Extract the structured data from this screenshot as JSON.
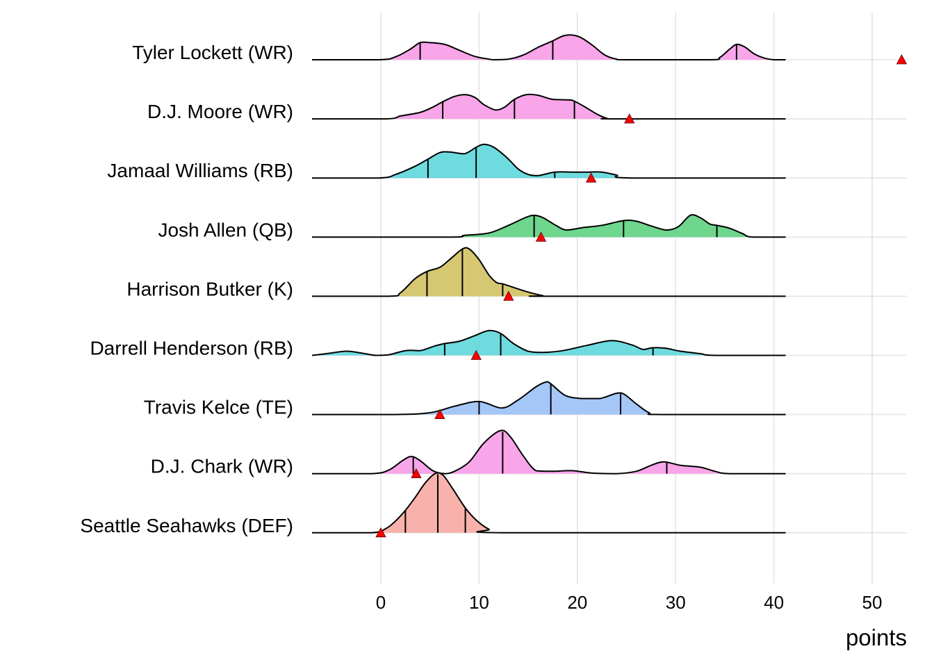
{
  "chart_data": {
    "type": "ridgeline",
    "title": "",
    "xlabel": "points",
    "ylabel": "",
    "xlim": [
      -7,
      53.5
    ],
    "x_ticks": [
      0,
      10,
      20,
      30,
      40,
      50
    ],
    "x_tick_labels": [
      "0",
      "10",
      "20",
      "30",
      "40",
      "50"
    ],
    "grid": true,
    "legend": "none",
    "marker_color": "#ff0000",
    "series": [
      {
        "name": "Tyler Lockett (WR)",
        "color": "#f8a0e8",
        "quantiles": [
          4.0,
          17.5,
          36.2
        ],
        "actual": 53.0,
        "density": [
          [
            -7,
            0
          ],
          [
            -0.2,
            0
          ],
          [
            1.5,
            0.05
          ],
          [
            3,
            0.18
          ],
          [
            4,
            0.29
          ],
          [
            5,
            0.29
          ],
          [
            6.5,
            0.26
          ],
          [
            8,
            0.16
          ],
          [
            9.5,
            0.06
          ],
          [
            11,
            0.01
          ],
          [
            11.6,
            0
          ],
          [
            13,
            0.01
          ],
          [
            14.5,
            0.08
          ],
          [
            16,
            0.21
          ],
          [
            17.5,
            0.32
          ],
          [
            18.5,
            0.4
          ],
          [
            19.3,
            0.42
          ],
          [
            20.3,
            0.38
          ],
          [
            21.5,
            0.25
          ],
          [
            22.8,
            0.08
          ],
          [
            24,
            0.01
          ],
          [
            25,
            0
          ],
          [
            33.5,
            0
          ],
          [
            34.5,
            0.04
          ],
          [
            35.5,
            0.18
          ],
          [
            36.2,
            0.26
          ],
          [
            37,
            0.22
          ],
          [
            38,
            0.1
          ],
          [
            39,
            0.03
          ],
          [
            40,
            0
          ],
          [
            41.2,
            0
          ]
        ]
      },
      {
        "name": "D.J. Moore (WR)",
        "color": "#f8a0e8",
        "quantiles": [
          6.3,
          13.6,
          19.7
        ],
        "actual": 25.3,
        "density": [
          [
            -7,
            0
          ],
          [
            0.5,
            0
          ],
          [
            2,
            0.05
          ],
          [
            4,
            0.11
          ],
          [
            5.3,
            0.2
          ],
          [
            6.3,
            0.29
          ],
          [
            7.5,
            0.38
          ],
          [
            8.6,
            0.41
          ],
          [
            9.6,
            0.36
          ],
          [
            10.5,
            0.24
          ],
          [
            11.7,
            0.15
          ],
          [
            12.6,
            0.2
          ],
          [
            13.6,
            0.33
          ],
          [
            14.8,
            0.41
          ],
          [
            16,
            0.4
          ],
          [
            17.5,
            0.33
          ],
          [
            19.2,
            0.32
          ],
          [
            19.7,
            0.3
          ],
          [
            20.8,
            0.2
          ],
          [
            22,
            0.08
          ],
          [
            23,
            0.01
          ],
          [
            24,
            0
          ],
          [
            41.2,
            0
          ]
        ]
      },
      {
        "name": "Jamaal Williams (RB)",
        "color": "#66d9dd",
        "quantiles": [
          4.8,
          9.7,
          17.7
        ],
        "actual": 21.4,
        "density": [
          [
            -7,
            0
          ],
          [
            -0.2,
            0
          ],
          [
            1.5,
            0.06
          ],
          [
            3.5,
            0.2
          ],
          [
            4.8,
            0.32
          ],
          [
            6,
            0.43
          ],
          [
            7,
            0.44
          ],
          [
            8.5,
            0.41
          ],
          [
            9.7,
            0.52
          ],
          [
            10.5,
            0.57
          ],
          [
            11.5,
            0.52
          ],
          [
            12.8,
            0.35
          ],
          [
            14,
            0.15
          ],
          [
            15,
            0.06
          ],
          [
            16,
            0.04
          ],
          [
            17.7,
            0.1
          ],
          [
            19.5,
            0.1
          ],
          [
            21,
            0.1
          ],
          [
            22.5,
            0.1
          ],
          [
            24,
            0.05
          ],
          [
            25.5,
            0
          ],
          [
            41.2,
            0
          ]
        ]
      },
      {
        "name": "Josh Allen (QB)",
        "color": "#66d487",
        "quantiles": [
          15.6,
          24.7,
          34.2
        ],
        "actual": 16.3,
        "density": [
          [
            -7,
            0
          ],
          [
            6.8,
            0
          ],
          [
            8.5,
            0.03
          ],
          [
            11,
            0.07
          ],
          [
            13,
            0.2
          ],
          [
            14.7,
            0.33
          ],
          [
            15.6,
            0.37
          ],
          [
            16.5,
            0.33
          ],
          [
            17.8,
            0.2
          ],
          [
            18.9,
            0.12
          ],
          [
            20.5,
            0.16
          ],
          [
            22.5,
            0.2
          ],
          [
            24.7,
            0.28
          ],
          [
            26,
            0.27
          ],
          [
            27.5,
            0.19
          ],
          [
            29.1,
            0.12
          ],
          [
            30.3,
            0.18
          ],
          [
            31.5,
            0.37
          ],
          [
            32.5,
            0.33
          ],
          [
            33.5,
            0.22
          ],
          [
            34.2,
            0.2
          ],
          [
            35.5,
            0.15
          ],
          [
            36.8,
            0.06
          ],
          [
            37.8,
            0
          ],
          [
            41.2,
            0
          ]
        ]
      },
      {
        "name": "Harrison Butker (K)",
        "color": "#d4c46a",
        "quantiles": [
          4.7,
          8.3,
          12.4
        ],
        "actual": 13.0,
        "density": [
          [
            -7,
            0
          ],
          [
            0.8,
            0
          ],
          [
            2,
            0.06
          ],
          [
            3.5,
            0.3
          ],
          [
            4.7,
            0.42
          ],
          [
            6,
            0.49
          ],
          [
            7,
            0.62
          ],
          [
            8.3,
            0.8
          ],
          [
            9,
            0.8
          ],
          [
            10,
            0.62
          ],
          [
            11,
            0.36
          ],
          [
            11.8,
            0.23
          ],
          [
            12.4,
            0.21
          ],
          [
            13.5,
            0.15
          ],
          [
            15,
            0.07
          ],
          [
            16.5,
            0.01
          ],
          [
            17,
            0
          ],
          [
            41.2,
            0
          ]
        ]
      },
      {
        "name": "Darrell Henderson (RB)",
        "color": "#66d9dd",
        "quantiles": [
          6.5,
          12.2,
          27.7
        ],
        "actual": 9.7,
        "density": [
          [
            -7,
            0
          ],
          [
            -5.5,
            0.03
          ],
          [
            -3.5,
            0.07
          ],
          [
            -2,
            0.04
          ],
          [
            -0.5,
            0
          ],
          [
            0.8,
            0.01
          ],
          [
            2.5,
            0.08
          ],
          [
            4,
            0.08
          ],
          [
            5.5,
            0.16
          ],
          [
            6.5,
            0.2
          ],
          [
            8,
            0.24
          ],
          [
            9.5,
            0.33
          ],
          [
            11,
            0.42
          ],
          [
            12.2,
            0.37
          ],
          [
            13.5,
            0.2
          ],
          [
            15,
            0.07
          ],
          [
            16.5,
            0.05
          ],
          [
            18.5,
            0.08
          ],
          [
            21,
            0.17
          ],
          [
            23.5,
            0.25
          ],
          [
            25.5,
            0.18
          ],
          [
            26.7,
            0.1
          ],
          [
            27.7,
            0.13
          ],
          [
            29,
            0.12
          ],
          [
            30.5,
            0.07
          ],
          [
            32.5,
            0.03
          ],
          [
            34,
            0
          ],
          [
            41.2,
            0
          ]
        ]
      },
      {
        "name": "Travis Kelce (TE)",
        "color": "#a0c4f8",
        "quantiles": [
          10.0,
          17.3,
          24.4
        ],
        "actual": 6.0,
        "density": [
          [
            -7,
            0
          ],
          [
            1.5,
            0
          ],
          [
            5,
            0.03
          ],
          [
            7.5,
            0.14
          ],
          [
            10,
            0.22
          ],
          [
            12.3,
            0.11
          ],
          [
            14,
            0.25
          ],
          [
            15.8,
            0.47
          ],
          [
            16.8,
            0.55
          ],
          [
            17.3,
            0.52
          ],
          [
            18.8,
            0.32
          ],
          [
            20.5,
            0.27
          ],
          [
            22.3,
            0.27
          ],
          [
            24,
            0.36
          ],
          [
            24.8,
            0.34
          ],
          [
            26,
            0.18
          ],
          [
            27.3,
            0.03
          ],
          [
            28.5,
            0
          ],
          [
            41.2,
            0
          ]
        ]
      },
      {
        "name": "D.J. Chark (WR)",
        "color": "#f8a0e8",
        "quantiles": [
          3.3,
          12.4,
          29.1
        ],
        "actual": 3.6,
        "density": [
          [
            -7,
            0
          ],
          [
            -1,
            0
          ],
          [
            0.8,
            0.06
          ],
          [
            2.2,
            0.22
          ],
          [
            3.1,
            0.29
          ],
          [
            4,
            0.22
          ],
          [
            5.3,
            0.05
          ],
          [
            6.5,
            0
          ],
          [
            7.5,
            0.04
          ],
          [
            9,
            0.2
          ],
          [
            10.5,
            0.52
          ],
          [
            12.2,
            0.73
          ],
          [
            13.2,
            0.62
          ],
          [
            14.5,
            0.3
          ],
          [
            15.8,
            0.05
          ],
          [
            17.5,
            0.04
          ],
          [
            19.5,
            0.05
          ],
          [
            21.5,
            0.01
          ],
          [
            24,
            0
          ],
          [
            26,
            0.04
          ],
          [
            27.5,
            0.14
          ],
          [
            28.8,
            0.2
          ],
          [
            30.5,
            0.14
          ],
          [
            32.5,
            0.11
          ],
          [
            34,
            0.04
          ],
          [
            35.5,
            0
          ],
          [
            41.2,
            0
          ]
        ]
      },
      {
        "name": "Seattle Seahawks (DEF)",
        "color": "#f8aea6",
        "quantiles": [
          2.5,
          5.8,
          8.6
        ],
        "actual": 0.0,
        "density": [
          [
            -7,
            0
          ],
          [
            -1,
            0
          ],
          [
            0.5,
            0.07
          ],
          [
            1.5,
            0.2
          ],
          [
            2.5,
            0.38
          ],
          [
            3.5,
            0.6
          ],
          [
            4.5,
            0.84
          ],
          [
            5.5,
            1.0
          ],
          [
            6.3,
            0.98
          ],
          [
            7.3,
            0.75
          ],
          [
            8.6,
            0.42
          ],
          [
            9.8,
            0.2
          ],
          [
            11,
            0.06
          ],
          [
            12.3,
            0
          ],
          [
            41.2,
            0
          ]
        ]
      }
    ]
  }
}
